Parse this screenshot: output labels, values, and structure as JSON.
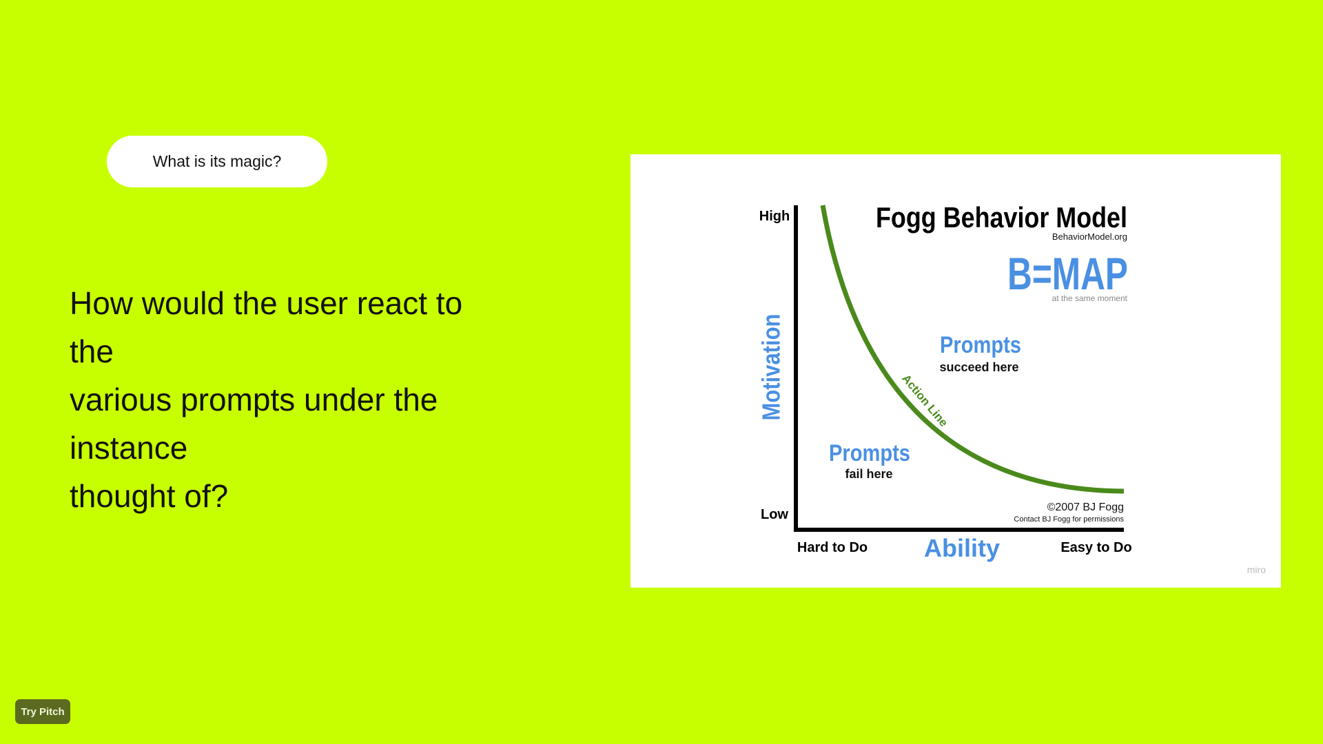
{
  "pill_label": "What is its magic?",
  "question_lines": [
    "How would the user react to",
    "the",
    "various prompts under the",
    "instance",
    "thought of?"
  ],
  "figure": {
    "title": "Fogg Behavior Model",
    "site": "BehaviorModel.org",
    "formula": "B=MAP",
    "formula_note": "at the same moment",
    "y_axis_label": "Motivation",
    "y_high": "High",
    "y_low": "Low",
    "x_axis_label": "Ability",
    "x_left": "Hard to Do",
    "x_right": "Easy to Do",
    "curve_label": "Action Line",
    "region_above_title": "Prompts",
    "region_above_sub": "succeed here",
    "region_below_title": "Prompts",
    "region_below_sub": "fail here",
    "copyright": "©2007 BJ Fogg",
    "permissions": "Contact BJ Fogg for permissions",
    "watermark": "miro",
    "colors": {
      "blue": "#4a90e2",
      "green": "#4a8a1c",
      "black": "#000000"
    }
  },
  "try_button": "Try Pitch",
  "colors": {
    "background": "#c8ff00",
    "button": "#5a6b1f"
  }
}
